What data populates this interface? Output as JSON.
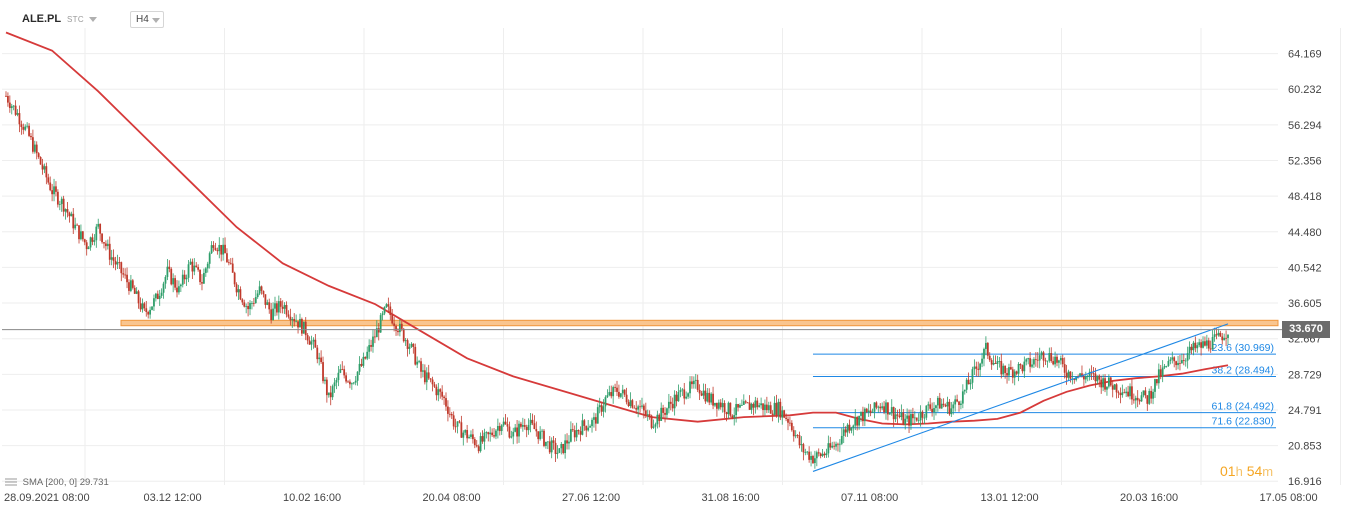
{
  "header": {
    "symbol": "ALE.PL",
    "market": "STC",
    "timeframe": "H4"
  },
  "indicator": {
    "label": "SMA",
    "params": "[200,  0]",
    "value": "29.731"
  },
  "timer": {
    "hours": "01",
    "h_unit": "h",
    "minutes": "54",
    "m_unit": "m"
  },
  "current_price": {
    "label": "33.670",
    "value": 33.67
  },
  "colors": {
    "up_candle": "#2e9e6a",
    "down_candle": "#c0392b",
    "sma": "#d63a3a",
    "resistance_zone_fill": "#f9c58f",
    "resistance_zone_border": "#f0963c",
    "fib_line": "#1e88e5",
    "trend_line": "#1e88e5",
    "price_line": "#888888",
    "grid": "#eeeeee"
  },
  "chart_data": {
    "type": "candlestick",
    "ylim": [
      16.5,
      67
    ],
    "y_ticks": [
      {
        "label": "64.169",
        "value": 64.169
      },
      {
        "label": "60.232",
        "value": 60.232
      },
      {
        "label": "56.294",
        "value": 56.294
      },
      {
        "label": "52.356",
        "value": 52.356
      },
      {
        "label": "48.418",
        "value": 48.418
      },
      {
        "label": "44.480",
        "value": 44.48
      },
      {
        "label": "40.542",
        "value": 40.542
      },
      {
        "label": "36.605",
        "value": 36.605
      },
      {
        "label": "32.667",
        "value": 32.667
      },
      {
        "label": "28.729",
        "value": 28.729
      },
      {
        "label": "24.791",
        "value": 24.791
      },
      {
        "label": "20.853",
        "value": 20.853
      },
      {
        "label": "16.916",
        "value": 16.916
      }
    ],
    "x_ticks": [
      "28.09.2021  08:00",
      "03.12  12:00",
      "10.02  16:00",
      "20.04  08:00",
      "27.06  12:00",
      "31.08  16:00",
      "07.11  08:00",
      "13.01  12:00",
      "20.03  16:00",
      "17.05  08:00"
    ],
    "close_path": [
      [
        0,
        59.5
      ],
      [
        1,
        57.5
      ],
      [
        2,
        55
      ],
      [
        3,
        52
      ],
      [
        4,
        49
      ],
      [
        5,
        47.5
      ],
      [
        6,
        45
      ],
      [
        7,
        43
      ],
      [
        8,
        45
      ],
      [
        9,
        42
      ],
      [
        10,
        40
      ],
      [
        11,
        38
      ],
      [
        12,
        35.5
      ],
      [
        13,
        37
      ],
      [
        14,
        40
      ],
      [
        15,
        38
      ],
      [
        16,
        41
      ],
      [
        17,
        39
      ],
      [
        18,
        43.5
      ],
      [
        19,
        42
      ],
      [
        20,
        38.5
      ],
      [
        21,
        36
      ],
      [
        22,
        38
      ],
      [
        23,
        35.5
      ],
      [
        24,
        36.5
      ],
      [
        25,
        35
      ],
      [
        26,
        33.5
      ],
      [
        27,
        31
      ],
      [
        28,
        26
      ],
      [
        29,
        29
      ],
      [
        30,
        28
      ],
      [
        31,
        30
      ],
      [
        32,
        33
      ],
      [
        33,
        36
      ],
      [
        34,
        34
      ],
      [
        35,
        32
      ],
      [
        36,
        29
      ],
      [
        37,
        27.5
      ],
      [
        38,
        26
      ],
      [
        39,
        23
      ],
      [
        40,
        22
      ],
      [
        41,
        21
      ],
      [
        42,
        22
      ],
      [
        43,
        23.5
      ],
      [
        44,
        22
      ],
      [
        45,
        23.5
      ],
      [
        46,
        22.5
      ],
      [
        47,
        21
      ],
      [
        48,
        20
      ],
      [
        49,
        22
      ],
      [
        50,
        23
      ],
      [
        51,
        23.5
      ],
      [
        52,
        26
      ],
      [
        53,
        27
      ],
      [
        54,
        26
      ],
      [
        55,
        25
      ],
      [
        56,
        23.5
      ],
      [
        57,
        24.5
      ],
      [
        58,
        26
      ],
      [
        59,
        27
      ],
      [
        60,
        27.5
      ],
      [
        61,
        26
      ],
      [
        62,
        25.5
      ],
      [
        63,
        24.5
      ],
      [
        64,
        25
      ],
      [
        65,
        25.5
      ],
      [
        66,
        25
      ],
      [
        67,
        25
      ],
      [
        68,
        23.5
      ],
      [
        69,
        20.5
      ],
      [
        70,
        19.5
      ],
      [
        71,
        20
      ],
      [
        72,
        21
      ],
      [
        73,
        23
      ],
      [
        74,
        24
      ],
      [
        75,
        24.5
      ],
      [
        76,
        25.5
      ],
      [
        77,
        24.5
      ],
      [
        78,
        23.5
      ],
      [
        79,
        24
      ],
      [
        80,
        25
      ],
      [
        81,
        25.5
      ],
      [
        82,
        25
      ],
      [
        83,
        26.5
      ],
      [
        84,
        29
      ],
      [
        85,
        31.5
      ],
      [
        86,
        29.5
      ],
      [
        87,
        29
      ],
      [
        88,
        29.5
      ],
      [
        89,
        30
      ],
      [
        90,
        31
      ],
      [
        91,
        30.5
      ],
      [
        92,
        29
      ],
      [
        93,
        28.5
      ],
      [
        94,
        28.5
      ],
      [
        95,
        28
      ],
      [
        96,
        27.5
      ],
      [
        97,
        27
      ],
      [
        98,
        26.5
      ],
      [
        99,
        26
      ],
      [
        100,
        28.5
      ],
      [
        101,
        30
      ],
      [
        102,
        30.5
      ],
      [
        103,
        31.5
      ],
      [
        104,
        32
      ],
      [
        105,
        32.5
      ],
      [
        106,
        33.67
      ]
    ],
    "sma_path": [
      [
        0,
        66.5
      ],
      [
        4,
        64.5
      ],
      [
        8,
        60
      ],
      [
        12,
        55
      ],
      [
        16,
        50
      ],
      [
        20,
        45
      ],
      [
        24,
        41
      ],
      [
        28,
        38.5
      ],
      [
        32,
        36.5
      ],
      [
        36,
        33.5
      ],
      [
        40,
        30.5
      ],
      [
        44,
        28.5
      ],
      [
        48,
        27
      ],
      [
        52,
        25.5
      ],
      [
        56,
        24
      ],
      [
        60,
        23.5
      ],
      [
        64,
        24
      ],
      [
        68,
        24.2
      ],
      [
        70,
        24.5
      ],
      [
        72,
        24.5
      ],
      [
        74,
        23.8
      ],
      [
        76,
        23.3
      ],
      [
        78,
        23.2
      ],
      [
        80,
        23.3
      ],
      [
        82,
        23.5
      ],
      [
        84,
        23.6
      ],
      [
        86,
        23.8
      ],
      [
        88,
        24.5
      ],
      [
        90,
        25.8
      ],
      [
        92,
        26.8
      ],
      [
        94,
        27.5
      ],
      [
        96,
        28
      ],
      [
        98,
        28.3
      ],
      [
        100,
        28.5
      ],
      [
        102,
        28.8
      ],
      [
        104,
        29.3
      ],
      [
        106,
        29.731
      ]
    ],
    "resistance_zone": {
      "low": 34.1,
      "high": 34.7
    },
    "trend_line": {
      "from": [
        70,
        18
      ],
      "to": [
        106,
        34.3
      ]
    },
    "fibonacci": [
      {
        "label": "23.6 (30.969)",
        "value": 30.969
      },
      {
        "label": "38.2 (28.494)",
        "value": 28.494
      },
      {
        "label": "61.8 (24.492)",
        "value": 24.492
      },
      {
        "label": "71.6 (22.830)",
        "value": 22.83
      }
    ],
    "fib_start_index": 70
  }
}
